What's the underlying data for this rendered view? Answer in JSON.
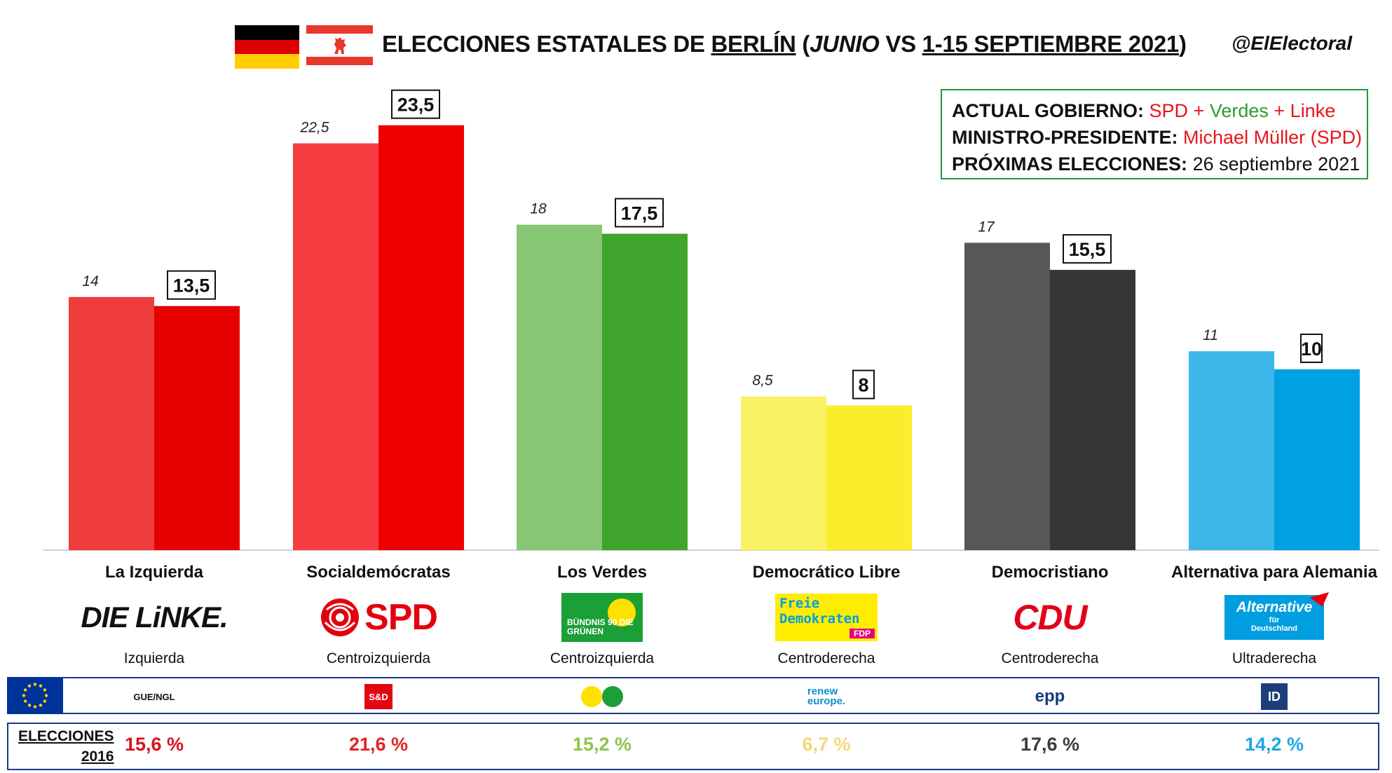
{
  "header": {
    "title_part1": "ELECCIONES ESTATALES DE ",
    "title_berlin": "BERLÍN",
    "title_open": " (",
    "title_junio": "JUNIO",
    "title_vs": " VS ",
    "title_dates": "1-15 SEPTIEMBRE 2021",
    "title_close": ")",
    "handle": "@ElElectoral"
  },
  "info": {
    "gov_key": "ACTUAL GOBIERNO:",
    "gov_spd": "SPD",
    "gov_plus1": " + ",
    "gov_verdes": "Verdes",
    "gov_plus2": " + ",
    "gov_linke": "Linke",
    "mp_key": "MINISTRO-PRESIDENTE:",
    "mp_value": "Michael Müller (SPD)",
    "next_key": "PRÓXIMAS ELECCIONES:",
    "next_value": "26 septiembre 2021"
  },
  "chart_data": {
    "type": "bar",
    "categories": [
      "La Izquierda",
      "Socialdemócratas",
      "Los Verdes",
      "Democrático Libre",
      "Democristiano",
      "Alternativa para Alemania"
    ],
    "series": [
      {
        "values": [
          14,
          22.5,
          18,
          8.5,
          17,
          11
        ],
        "labels": [
          "14",
          "22,5",
          "18",
          "8,5",
          "17",
          "11"
        ]
      },
      {
        "values": [
          13.5,
          23.5,
          17.5,
          8,
          15.5,
          10
        ],
        "labels": [
          "13,5",
          "23,5",
          "17,5",
          "8",
          "15,5",
          "10"
        ]
      }
    ],
    "colors_prev": [
      "#ef3c3c",
      "#f63d41",
      "#86c674",
      "#f9f264",
      "#575757",
      "#3db7e9"
    ],
    "colors_curr": [
      "#e60000",
      "#ee0000",
      "#40a52c",
      "#fbec2c",
      "#363636",
      "#00a1e3"
    ],
    "ylim": [
      0,
      26
    ]
  },
  "parties": [
    {
      "name": "La Izquierda",
      "logo": "DIE LiNKE.",
      "ideology": "Izquierda",
      "eu_group": "GUE/NGL",
      "result_2016": "15,6 %",
      "color_2016": "#d8131b"
    },
    {
      "name": "Socialdemócratas",
      "logo": "SPD",
      "ideology": "Centroizquierda",
      "eu_group": "S&D",
      "result_2016": "21,6 %",
      "color_2016": "#e02323"
    },
    {
      "name": "Los Verdes",
      "logo": "BÜNDNIS 90 DIE GRÜNEN",
      "ideology": "Centroizquierda",
      "eu_group": "Greens/EFA",
      "result_2016": "15,2 %",
      "color_2016": "#8cc54e"
    },
    {
      "name": "Democrático Libre",
      "logo_line1": "Freie",
      "logo_line2": "Demokraten",
      "logo_tag": "FDP",
      "ideology": "Centroderecha",
      "eu_group_line1": "renew",
      "eu_group_line2": "europe.",
      "result_2016": "6,7 %",
      "color_2016": "#f5d77a"
    },
    {
      "name": "Democristiano",
      "logo": "CDU",
      "ideology": "Centroderecha",
      "eu_group": "epp",
      "result_2016": "17,6 %",
      "color_2016": "#3c3c3c"
    },
    {
      "name": "Alternativa para Alemania",
      "logo_line1": "Alternative",
      "logo_line2": "für",
      "logo_line3": "Deutschland",
      "ideology": "Ultraderecha",
      "eu_group": "ID",
      "result_2016": "14,2 %",
      "color_2016": "#1aa9e1"
    }
  ],
  "elections_2016": {
    "label_line1": "ELECCIONES",
    "label_line2": "2016"
  },
  "icons": [
    "flag-germany-icon",
    "flag-berlin-icon",
    "eu-flag-icon",
    "rose-icon",
    "sunflower-icon"
  ]
}
